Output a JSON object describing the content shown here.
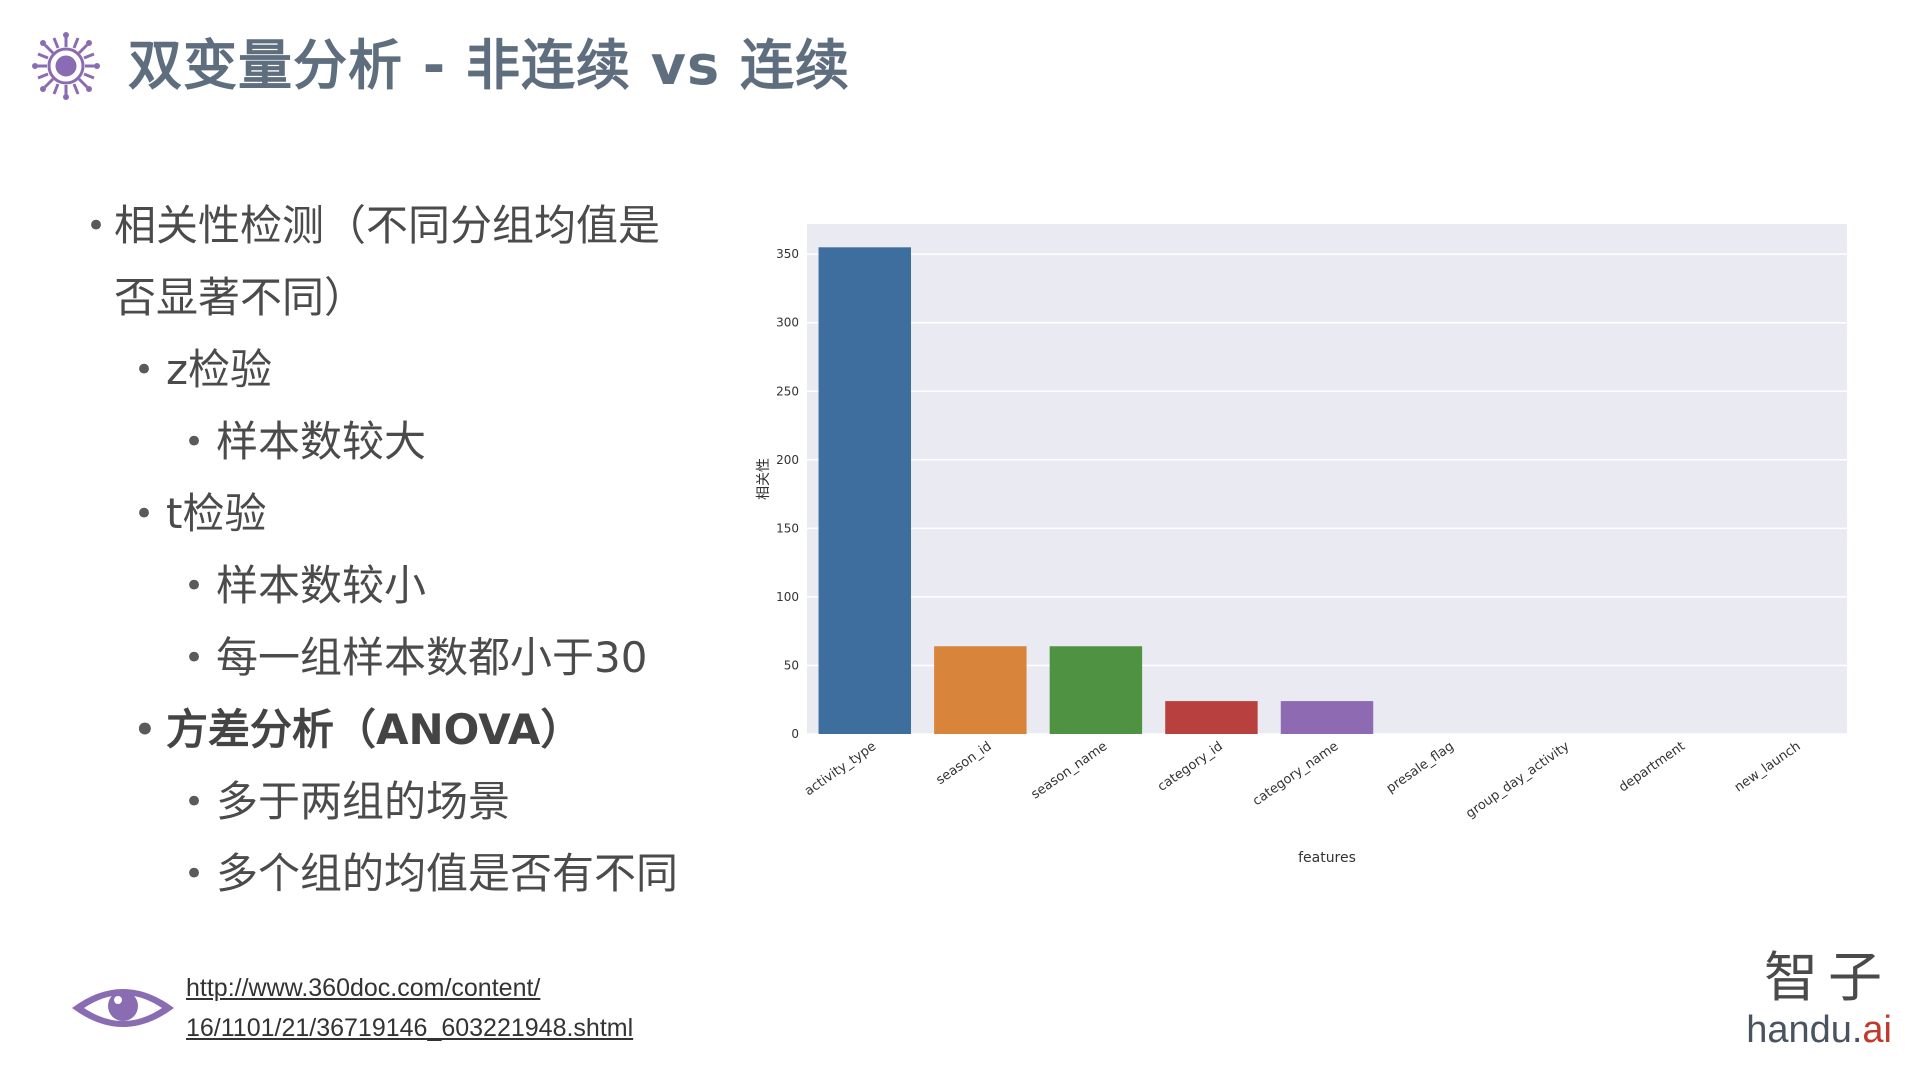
{
  "title": "双变量分析 - 非连续 vs 连续",
  "bullets": {
    "item1_line1": "相关性检测（不同分组均值是",
    "item1_line2": "否显著不同）",
    "z_test": "z检验",
    "z_test_sub": "样本数较大",
    "t_test": "t检验",
    "t_test_sub1": "样本数较小",
    "t_test_sub2": "每一组样本数都小于30",
    "anova": "方差分析（ANOVA）",
    "anova_sub1": "多于两组的场景",
    "anova_sub2": "多个组的均值是否有不同"
  },
  "link": {
    "line1": "http://www.360doc.com/content/",
    "line2": "16/1101/21/36719146_603221948.shtml"
  },
  "logo": {
    "cn": "智子",
    "en_main": "handu.",
    "en_accent": "ai"
  },
  "icons": {
    "title": "virus-gear-icon",
    "footer": "eye-icon"
  },
  "chart_data": {
    "type": "bar",
    "categories": [
      "activity_type",
      "season_id",
      "season_name",
      "category_id",
      "category_name",
      "presale_flag",
      "group_day_activity",
      "department",
      "new_launch"
    ],
    "values": [
      355,
      64,
      64,
      24,
      24,
      0,
      0,
      0,
      0
    ],
    "colors": [
      "#3e6e9e",
      "#d8843a",
      "#4e9242",
      "#b8413f",
      "#8e6ab2",
      "#8c6d5a",
      "#d487c0",
      "#8c8c8c",
      "#c0be5a"
    ],
    "xlabel": "features",
    "ylabel": "相关性",
    "ylim": [
      0,
      372
    ],
    "yticks": [
      0,
      50,
      100,
      150,
      200,
      250,
      300,
      350
    ],
    "grid": true,
    "background": "#eaeaf2"
  }
}
